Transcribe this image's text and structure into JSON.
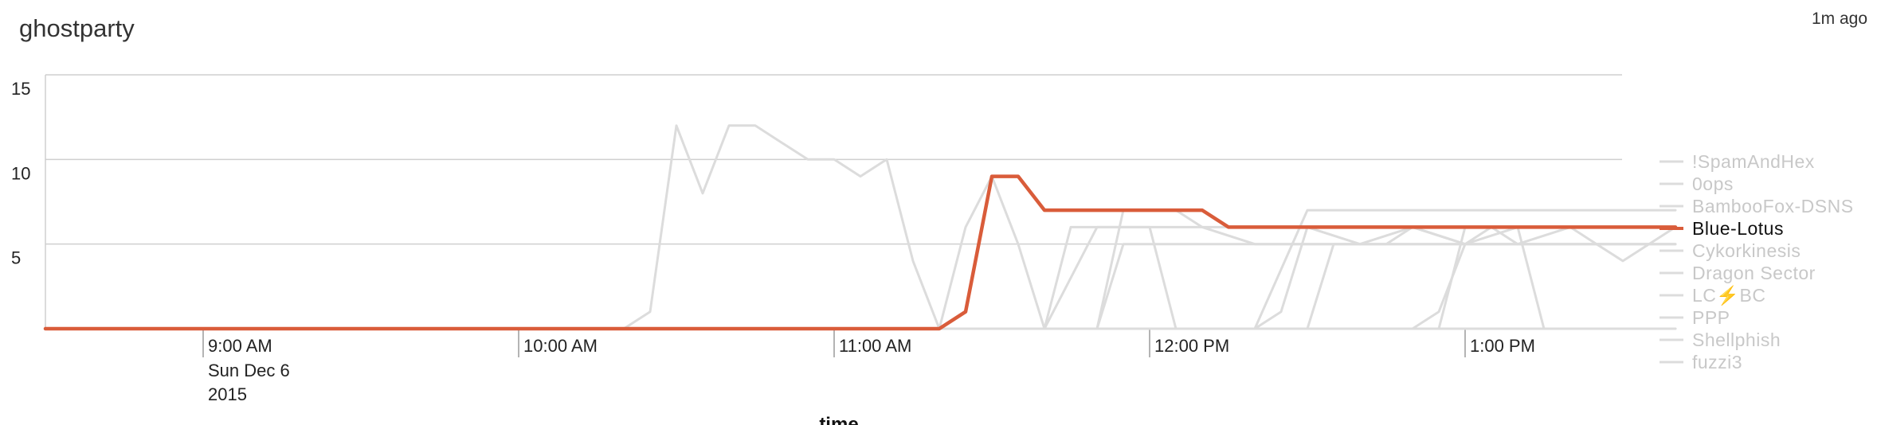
{
  "header": {
    "title": "ghostparty",
    "updated": "1m ago"
  },
  "chart_data": {
    "type": "line",
    "title": "ghostparty",
    "xlabel": "time",
    "ylabel": "",
    "ylim": [
      0,
      15
    ],
    "yticks": [
      5,
      10,
      15
    ],
    "x_ticks": [
      {
        "time": "09:00",
        "label": "9:00 AM",
        "sub": [
          "Sun Dec 6",
          "2015"
        ]
      },
      {
        "time": "10:00",
        "label": "10:00 AM"
      },
      {
        "time": "11:00",
        "label": "11:00 AM"
      },
      {
        "time": "12:00",
        "label": "12:00 PM"
      },
      {
        "time": "13:00",
        "label": "1:00 PM"
      }
    ],
    "x_range": [
      "08:30",
      "13:45"
    ],
    "grid": true,
    "legend_position": "right",
    "highlight_color": "#d95c3a",
    "muted_color": "#dcdcdc",
    "muted_color_alt": "#c8c8c8",
    "series": [
      {
        "name": "!SpamAndHex",
        "highlight": false,
        "points": [
          [
            "08:30",
            0
          ],
          [
            "10:05",
            0
          ],
          [
            "10:20",
            0
          ],
          [
            "10:50",
            0
          ],
          [
            "11:00",
            0
          ],
          [
            "11:15",
            0
          ],
          [
            "11:30",
            0
          ],
          [
            "11:40",
            0
          ],
          [
            "11:45",
            6
          ],
          [
            "12:00",
            6
          ],
          [
            "12:05",
            0
          ],
          [
            "12:10",
            0
          ],
          [
            "12:20",
            0
          ],
          [
            "12:30",
            7
          ],
          [
            "13:40",
            7
          ]
        ]
      },
      {
        "name": "0ops",
        "highlight": false,
        "points": [
          [
            "08:30",
            0
          ],
          [
            "11:50",
            0
          ],
          [
            "11:55",
            7
          ],
          [
            "12:05",
            7
          ],
          [
            "12:10",
            6
          ],
          [
            "12:20",
            5
          ],
          [
            "12:45",
            5
          ],
          [
            "12:50",
            6
          ],
          [
            "13:00",
            5
          ],
          [
            "13:05",
            6
          ],
          [
            "13:10",
            5
          ],
          [
            "13:20",
            6
          ],
          [
            "13:40",
            6
          ]
        ]
      },
      {
        "name": "BambooFox-DSNS",
        "highlight": false,
        "points": [
          [
            "08:30",
            0
          ],
          [
            "12:05",
            0
          ],
          [
            "12:10",
            0
          ],
          [
            "12:15",
            0
          ],
          [
            "12:30",
            0
          ],
          [
            "12:40",
            0
          ],
          [
            "12:55",
            0
          ],
          [
            "13:00",
            6
          ],
          [
            "13:10",
            6
          ],
          [
            "13:15",
            0
          ],
          [
            "13:40",
            0
          ]
        ]
      },
      {
        "name": "Blue-Lotus",
        "highlight": true,
        "points": [
          [
            "08:30",
            0
          ],
          [
            "11:20",
            0
          ],
          [
            "11:25",
            1
          ],
          [
            "11:30",
            9
          ],
          [
            "11:35",
            9
          ],
          [
            "11:40",
            7
          ],
          [
            "11:55",
            7
          ],
          [
            "12:10",
            7
          ],
          [
            "12:15",
            6
          ],
          [
            "13:00",
            6
          ],
          [
            "13:40",
            6
          ]
        ]
      },
      {
        "name": "Cykorkinesis",
        "highlight": false,
        "points": [
          [
            "08:30",
            0
          ],
          [
            "10:20",
            0
          ],
          [
            "10:25",
            1
          ],
          [
            "10:30",
            12
          ],
          [
            "10:35",
            8
          ],
          [
            "10:40",
            12
          ],
          [
            "10:45",
            12
          ],
          [
            "10:50",
            11
          ],
          [
            "10:55",
            10
          ],
          [
            "11:00",
            10
          ],
          [
            "11:05",
            9
          ],
          [
            "11:10",
            10
          ],
          [
            "11:15",
            4
          ],
          [
            "11:20",
            0
          ],
          [
            "11:25",
            6
          ],
          [
            "11:30",
            9
          ],
          [
            "11:35",
            5
          ],
          [
            "11:40",
            0
          ],
          [
            "11:45",
            0
          ],
          [
            "11:50",
            0
          ],
          [
            "11:55",
            5
          ],
          [
            "12:00",
            5
          ],
          [
            "12:05",
            5
          ],
          [
            "12:15",
            5
          ],
          [
            "12:20",
            5
          ],
          [
            "12:35",
            5
          ],
          [
            "13:00",
            5
          ],
          [
            "13:40",
            5
          ]
        ]
      },
      {
        "name": "Dragon Sector",
        "highlight": false,
        "points": [
          [
            "08:30",
            0
          ],
          [
            "11:35",
            0
          ],
          [
            "11:40",
            0
          ],
          [
            "11:50",
            6
          ],
          [
            "11:55",
            6
          ],
          [
            "12:00",
            6
          ],
          [
            "12:10",
            6
          ],
          [
            "12:30",
            6
          ],
          [
            "12:40",
            5
          ],
          [
            "12:50",
            6
          ],
          [
            "13:00",
            6
          ],
          [
            "13:10",
            6
          ],
          [
            "13:20",
            6
          ],
          [
            "13:25",
            5
          ],
          [
            "13:30",
            4
          ],
          [
            "13:40",
            6
          ]
        ]
      },
      {
        "name": "LC⚡BC",
        "highlight": false,
        "points": [
          [
            "08:30",
            0
          ],
          [
            "11:50",
            0
          ],
          [
            "12:00",
            0
          ],
          [
            "12:10",
            0
          ],
          [
            "12:20",
            0
          ],
          [
            "12:25",
            1
          ],
          [
            "12:30",
            6
          ],
          [
            "12:40",
            6
          ],
          [
            "12:50",
            6
          ],
          [
            "13:00",
            5
          ],
          [
            "13:10",
            6
          ],
          [
            "13:40",
            6
          ]
        ]
      },
      {
        "name": "PPP",
        "highlight": false,
        "points": [
          [
            "08:30",
            0
          ],
          [
            "12:20",
            0
          ],
          [
            "12:30",
            0
          ],
          [
            "12:40",
            0
          ],
          [
            "12:50",
            0
          ],
          [
            "12:55",
            1
          ],
          [
            "13:00",
            5
          ],
          [
            "13:10",
            5
          ],
          [
            "13:20",
            5
          ],
          [
            "13:40",
            5
          ]
        ]
      },
      {
        "name": "Shellphish",
        "highlight": false,
        "points": [
          [
            "08:30",
            0
          ],
          [
            "13:40",
            0
          ]
        ]
      },
      {
        "name": "fuzzi3",
        "highlight": false,
        "points": [
          [
            "08:30",
            0
          ],
          [
            "12:25",
            0
          ],
          [
            "12:30",
            0
          ],
          [
            "12:35",
            5
          ],
          [
            "12:55",
            5
          ],
          [
            "13:40",
            5
          ]
        ]
      }
    ]
  }
}
